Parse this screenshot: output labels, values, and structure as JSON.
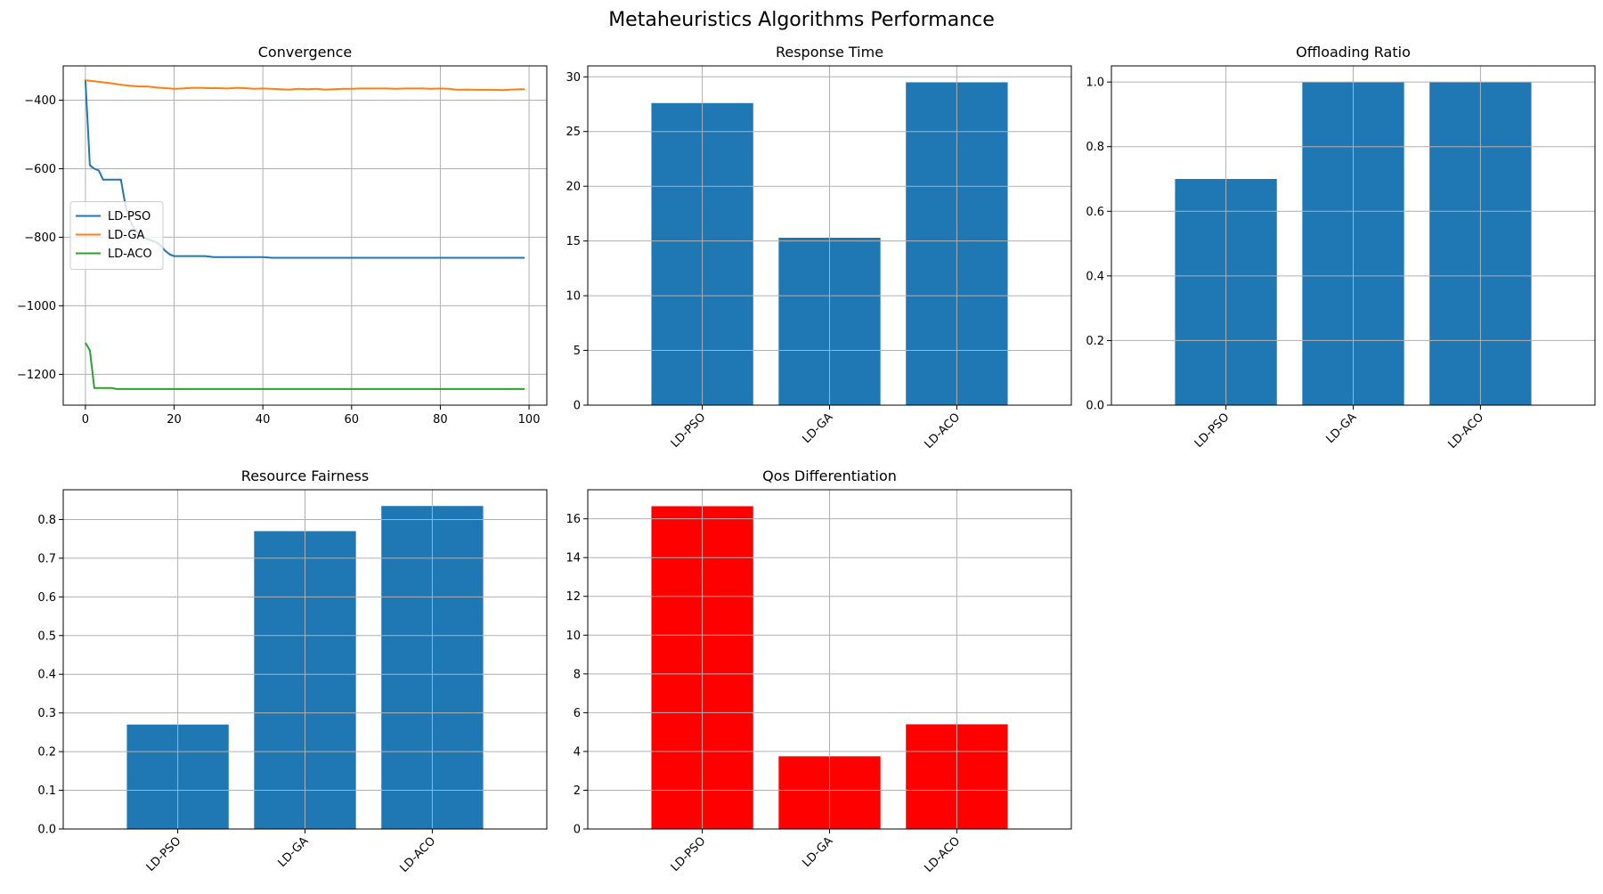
{
  "figure": {
    "title": "Metaheuristics Algorithms Performance"
  },
  "colors": {
    "bar": "#1f77b4",
    "bar_highlight": "#ff0000",
    "pso": "#1f77b4",
    "ga": "#ff7f0e",
    "aco": "#2ca02c",
    "grid": "#b0b0b0"
  },
  "chart_data": [
    {
      "id": "convergence",
      "type": "line",
      "title": "Convergence",
      "xlabel": "",
      "ylabel": "",
      "xlim": [
        -5,
        104
      ],
      "ylim": [
        -1290,
        -300
      ],
      "xticks": [
        0,
        20,
        40,
        60,
        80,
        100
      ],
      "yticks": [
        -1200,
        -1000,
        -800,
        -600,
        -400
      ],
      "grid": true,
      "legend": "center-left",
      "series": [
        {
          "name": "LD-PSO",
          "color": "#1f77b4",
          "points": [
            [
              0,
              -340
            ],
            [
              1,
              -590
            ],
            [
              2,
              -600
            ],
            [
              3,
              -605
            ],
            [
              4,
              -632
            ],
            [
              5,
              -632
            ],
            [
              6,
              -632
            ],
            [
              7,
              -632
            ],
            [
              8,
              -632
            ],
            [
              9,
              -705
            ],
            [
              10,
              -750
            ],
            [
              11,
              -775
            ],
            [
              12,
              -790
            ],
            [
              13,
              -800
            ],
            [
              14,
              -805
            ],
            [
              15,
              -810
            ],
            [
              16,
              -815
            ],
            [
              17,
              -825
            ],
            [
              18,
              -840
            ],
            [
              19,
              -850
            ],
            [
              20,
              -855
            ],
            [
              25,
              -855
            ],
            [
              27,
              -855
            ],
            [
              29,
              -858
            ],
            [
              35,
              -858
            ],
            [
              40,
              -858
            ],
            [
              42,
              -860
            ],
            [
              50,
              -860
            ],
            [
              60,
              -860
            ],
            [
              70,
              -860
            ],
            [
              80,
              -860
            ],
            [
              90,
              -860
            ],
            [
              99,
              -860
            ]
          ]
        },
        {
          "name": "LD-GA",
          "color": "#ff7f0e",
          "points": [
            [
              0,
              -342
            ],
            [
              2,
              -345
            ],
            [
              4,
              -348
            ],
            [
              6,
              -351
            ],
            [
              8,
              -355
            ],
            [
              10,
              -358
            ],
            [
              12,
              -360
            ],
            [
              14,
              -360
            ],
            [
              16,
              -363
            ],
            [
              18,
              -365
            ],
            [
              20,
              -367
            ],
            [
              22,
              -366
            ],
            [
              24,
              -364
            ],
            [
              26,
              -364
            ],
            [
              28,
              -365
            ],
            [
              30,
              -365
            ],
            [
              32,
              -366
            ],
            [
              34,
              -364
            ],
            [
              36,
              -365
            ],
            [
              38,
              -367
            ],
            [
              40,
              -366
            ],
            [
              42,
              -367
            ],
            [
              44,
              -368
            ],
            [
              46,
              -369
            ],
            [
              48,
              -367
            ],
            [
              50,
              -368
            ],
            [
              52,
              -367
            ],
            [
              54,
              -369
            ],
            [
              56,
              -368
            ],
            [
              58,
              -367
            ],
            [
              60,
              -367
            ],
            [
              62,
              -366
            ],
            [
              64,
              -366
            ],
            [
              66,
              -366
            ],
            [
              68,
              -366
            ],
            [
              70,
              -367
            ],
            [
              72,
              -366
            ],
            [
              74,
              -366
            ],
            [
              76,
              -366
            ],
            [
              78,
              -367
            ],
            [
              80,
              -366
            ],
            [
              82,
              -367
            ],
            [
              84,
              -370
            ],
            [
              86,
              -369
            ],
            [
              88,
              -370
            ],
            [
              90,
              -370
            ],
            [
              92,
              -370
            ],
            [
              94,
              -371
            ],
            [
              96,
              -369
            ],
            [
              98,
              -368
            ],
            [
              99,
              -368
            ]
          ]
        },
        {
          "name": "LD-ACO",
          "color": "#2ca02c",
          "points": [
            [
              0,
              -1108
            ],
            [
              1,
              -1130
            ],
            [
              2,
              -1240
            ],
            [
              3,
              -1240
            ],
            [
              4,
              -1240
            ],
            [
              5,
              -1240
            ],
            [
              6,
              -1240
            ],
            [
              7,
              -1243
            ],
            [
              8,
              -1243
            ],
            [
              20,
              -1243
            ],
            [
              40,
              -1243
            ],
            [
              60,
              -1243
            ],
            [
              80,
              -1243
            ],
            [
              99,
              -1243
            ]
          ]
        }
      ]
    },
    {
      "id": "response-time",
      "type": "bar",
      "title": "Response Time",
      "categories": [
        "LD-PSO",
        "LD-GA",
        "LD-ACO"
      ],
      "values": [
        27.6,
        15.3,
        29.5
      ],
      "ylim": [
        0,
        31
      ],
      "yticks": [
        0,
        5,
        10,
        15,
        20,
        25,
        30
      ],
      "grid": true,
      "color": "#1f77b4"
    },
    {
      "id": "offloading-ratio",
      "type": "bar",
      "title": "Offloading Ratio",
      "categories": [
        "LD-PSO",
        "LD-GA",
        "LD-ACO"
      ],
      "values": [
        0.7,
        1.0,
        1.0
      ],
      "ylim": [
        0,
        1.05
      ],
      "yticks": [
        0.0,
        0.2,
        0.4,
        0.6,
        0.8,
        1.0
      ],
      "grid": true,
      "color": "#1f77b4"
    },
    {
      "id": "resource-fairness",
      "type": "bar",
      "title": "Resource Fairness",
      "categories": [
        "LD-PSO",
        "LD-GA",
        "LD-ACO"
      ],
      "values": [
        0.27,
        0.77,
        0.835
      ],
      "ylim": [
        0,
        0.877
      ],
      "yticks": [
        0.0,
        0.1,
        0.2,
        0.3,
        0.4,
        0.5,
        0.6,
        0.7,
        0.8
      ],
      "grid": true,
      "color": "#1f77b4"
    },
    {
      "id": "qos-differentiation",
      "type": "bar",
      "title": "Qos Differentiation",
      "categories": [
        "LD-PSO",
        "LD-GA",
        "LD-ACO"
      ],
      "values": [
        16.65,
        3.75,
        5.4
      ],
      "ylim": [
        0,
        17.5
      ],
      "yticks": [
        0,
        2,
        4,
        6,
        8,
        10,
        12,
        14,
        16
      ],
      "grid": true,
      "color": "#ff0000"
    }
  ]
}
